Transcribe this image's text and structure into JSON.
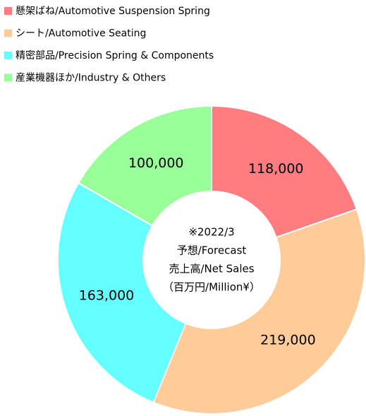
{
  "chart_data": {
    "type": "donut",
    "categories": [
      "懸架ばね/Automotive Suspension Spring",
      "シート/Automotive Seating",
      "精密部品/Precision Spring & Components",
      "産業機器ほか/Industry & Others"
    ],
    "values": [
      118000,
      219000,
      163000,
      100000
    ],
    "value_labels": [
      "118,000",
      "219,000",
      "163,000",
      "100,000"
    ],
    "colors": [
      "#ff7c80",
      "#ffcc99",
      "#66ffff",
      "#99ff99"
    ],
    "center_text": [
      "※2022/3",
      "予想/Forecast",
      "売上高/Net Sales",
      "（百万円/Million¥）"
    ]
  }
}
